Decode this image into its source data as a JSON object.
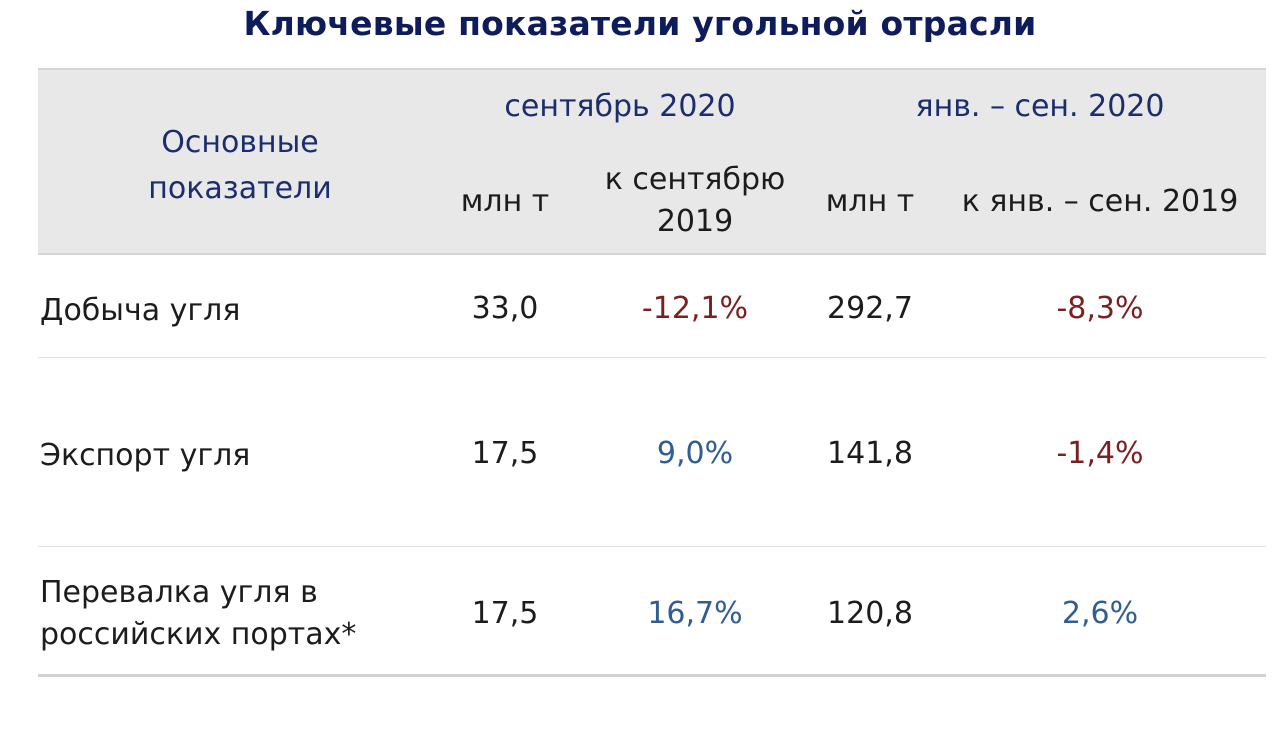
{
  "title": "Ключевые показатели угольной отрасли",
  "header": {
    "row_label": "Основные показатели",
    "row_label_line1": "Основные",
    "row_label_line2": "показатели",
    "group1": "сентябрь 2020",
    "group2": "янв. – сен. 2020",
    "sub_mt": "млн т",
    "sub_vs1_line1": "к сентябрю",
    "sub_vs1_line2": "2019",
    "sub_vs2": "к янв. – сен. 2019"
  },
  "rows": [
    {
      "label_line1": "Добыча угля",
      "label_line2": "",
      "sep_mt": "33,0",
      "sep_change": "-12,1%",
      "ytd_mt": "292,7",
      "ytd_change": "-8,3%"
    },
    {
      "label_line1": "Экспорт угля",
      "label_line2": "",
      "sep_mt": "17,5",
      "sep_change": "9,0%",
      "ytd_mt": "141,8",
      "ytd_change": "-1,4%"
    },
    {
      "label_line1": "Перевалка угля в",
      "label_line2": "российских портах*",
      "sep_mt": "17,5",
      "sep_change": "16,7%",
      "ytd_mt": "120,8",
      "ytd_change": "2,6%"
    }
  ],
  "colors": {
    "title": "#0e1c5c",
    "header_text": "#1c2d6e",
    "header_bg": "#e8e8e8",
    "negative": "#7a1f22",
    "positive": "#2f5e93"
  }
}
